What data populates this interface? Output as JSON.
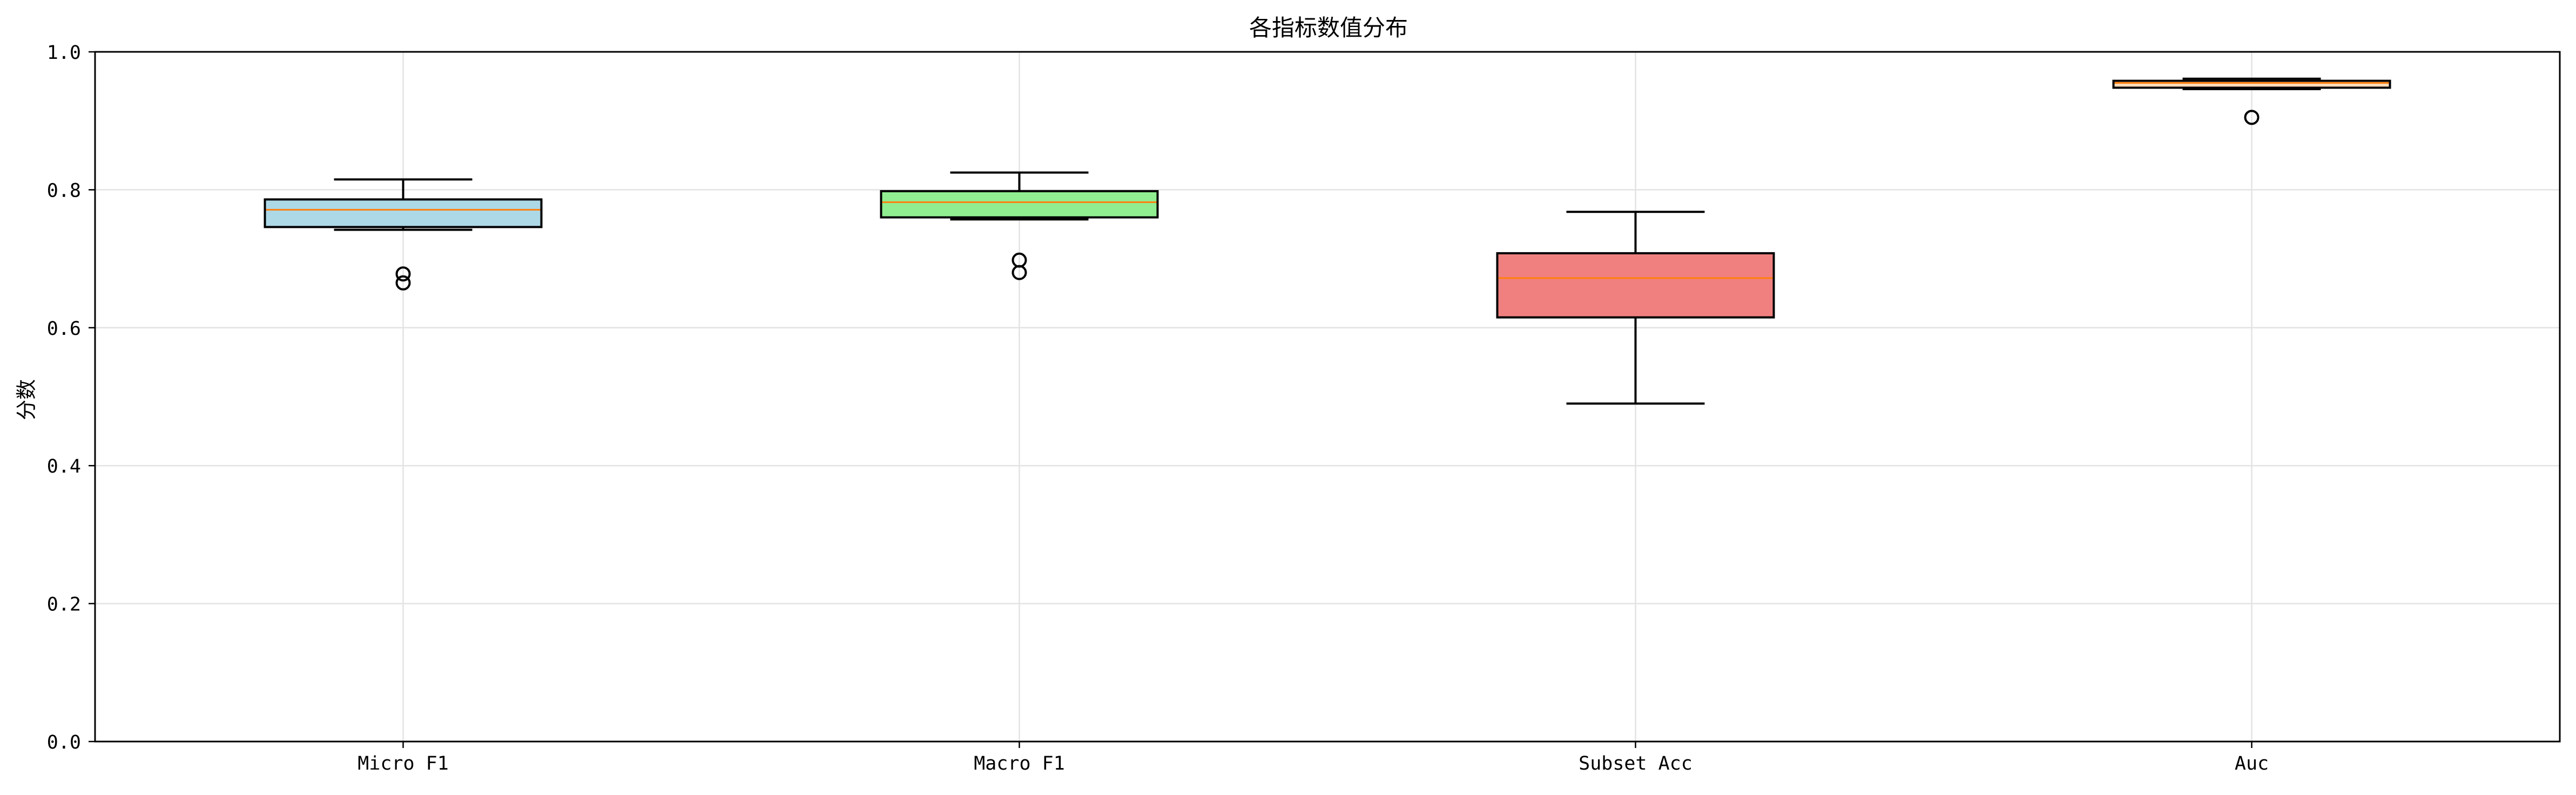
{
  "chart_data": {
    "type": "box",
    "title": "各指标数值分布",
    "xlabel": "",
    "ylabel": "分数",
    "ylim": [
      0,
      1
    ],
    "yticks": [
      "0.0",
      "0.2",
      "0.4",
      "0.6",
      "0.8",
      "1.0"
    ],
    "grid": true,
    "categories": [
      "Micro F1",
      "Macro F1",
      "Subset Acc",
      "Auc"
    ],
    "boxes": [
      {
        "label": "Micro F1",
        "whisker_low": 0.742,
        "q1": 0.746,
        "median": 0.771,
        "q3": 0.786,
        "whisker_high": 0.815,
        "outliers": [
          0.678,
          0.665
        ],
        "color": "#add8e6"
      },
      {
        "label": "Macro F1",
        "whisker_low": 0.757,
        "q1": 0.76,
        "median": 0.782,
        "q3": 0.798,
        "whisker_high": 0.825,
        "outliers": [
          0.698,
          0.68
        ],
        "color": "#90ee90"
      },
      {
        "label": "Subset Acc",
        "whisker_low": 0.49,
        "q1": 0.615,
        "median": 0.672,
        "q3": 0.708,
        "whisker_high": 0.768,
        "outliers": [],
        "color": "#f08080"
      },
      {
        "label": "Auc",
        "whisker_low": 0.946,
        "q1": 0.948,
        "median": 0.955,
        "q3": 0.958,
        "whisker_high": 0.961,
        "outliers": [
          0.905
        ],
        "color": "#ffdab9"
      }
    ],
    "median_color": "#ff7f0e"
  }
}
